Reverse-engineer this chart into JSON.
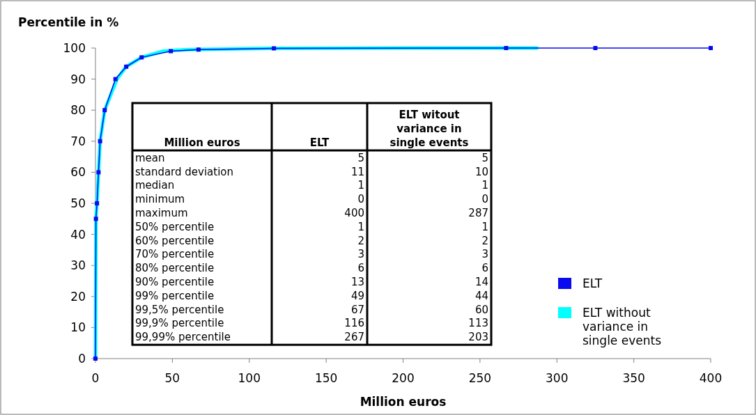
{
  "chart_data": [
    {
      "type": "line",
      "xlabel": "Million euros",
      "ylabel": "Percentile in %",
      "xlim": [
        0,
        400
      ],
      "xticks": [
        0,
        50,
        100,
        150,
        200,
        250,
        300,
        350,
        400
      ],
      "ylim": [
        0,
        100
      ],
      "yticks": [
        0,
        10,
        20,
        30,
        40,
        50,
        60,
        70,
        80,
        90,
        100
      ],
      "grid": false,
      "legend": "right",
      "series": [
        {
          "name": "ELT",
          "color": "#0a0aee",
          "x": [
            0,
            0.3,
            1,
            2,
            3,
            6,
            13,
            20,
            30,
            49,
            67,
            116,
            267,
            325,
            400
          ],
          "values": [
            0,
            45,
            50,
            60,
            70,
            80,
            90,
            94,
            97,
            99,
            99.5,
            99.9,
            100,
            100,
            100
          ],
          "marker": "square"
        },
        {
          "name": "ELT without variance in single events",
          "color": "#00ffff",
          "x": [
            0,
            0.3,
            1,
            2,
            3,
            6,
            14,
            20,
            30,
            44,
            60,
            113,
            203,
            287
          ],
          "values": [
            0,
            45,
            50,
            60,
            70,
            80,
            90,
            94,
            97,
            99,
            99.5,
            99.9,
            100,
            100
          ],
          "marker": "none"
        }
      ]
    },
    {
      "type": "other",
      "title": "Million euros",
      "data_labels": true,
      "categories": [
        "mean",
        "standard deviation",
        "median",
        "minimum",
        "maximum",
        "50% percentile",
        "60% percentile",
        "70% percentile",
        "80% percentile",
        "90% percentile",
        "99% percentile",
        "99,5% percentile",
        "99,9% percentile",
        "99,99% percentile"
      ],
      "series": [
        {
          "name": "ELT",
          "values": [
            5,
            11,
            1,
            0,
            400,
            1,
            2,
            3,
            6,
            13,
            49,
            67,
            116,
            267
          ]
        },
        {
          "name": "ELT witout variance in single events",
          "values": [
            5,
            10,
            1,
            0,
            287,
            1,
            2,
            3,
            6,
            14,
            44,
            60,
            113,
            203
          ]
        }
      ]
    }
  ]
}
